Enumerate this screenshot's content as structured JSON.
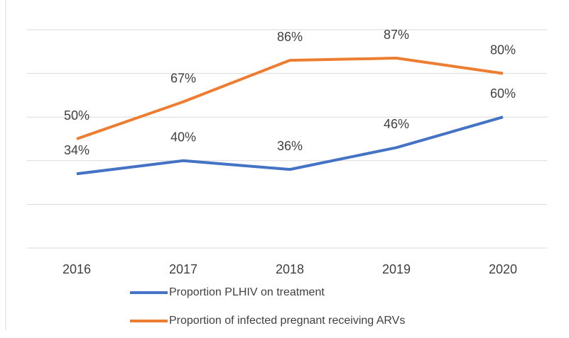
{
  "chart_data": {
    "type": "line",
    "categories": [
      "2016",
      "2017",
      "2018",
      "2019",
      "2020"
    ],
    "series": [
      {
        "name": "Proportion PLHIV on treatment",
        "color": "#4472c4",
        "values": [
          34,
          40,
          36,
          46,
          60
        ],
        "value_labels": [
          "34%",
          "40%",
          "36%",
          "46%",
          "60%"
        ]
      },
      {
        "name": "Proportion of infected pregnant receiving ARVs",
        "color": "#ed7d31",
        "values": [
          50,
          67,
          86,
          87,
          80
        ],
        "value_labels": [
          "50%",
          "67%",
          "86%",
          "87%",
          "80%"
        ]
      }
    ],
    "ylim": [
      0,
      100
    ],
    "yticks": [
      0,
      20,
      40,
      60,
      80,
      100
    ],
    "grid": true
  }
}
